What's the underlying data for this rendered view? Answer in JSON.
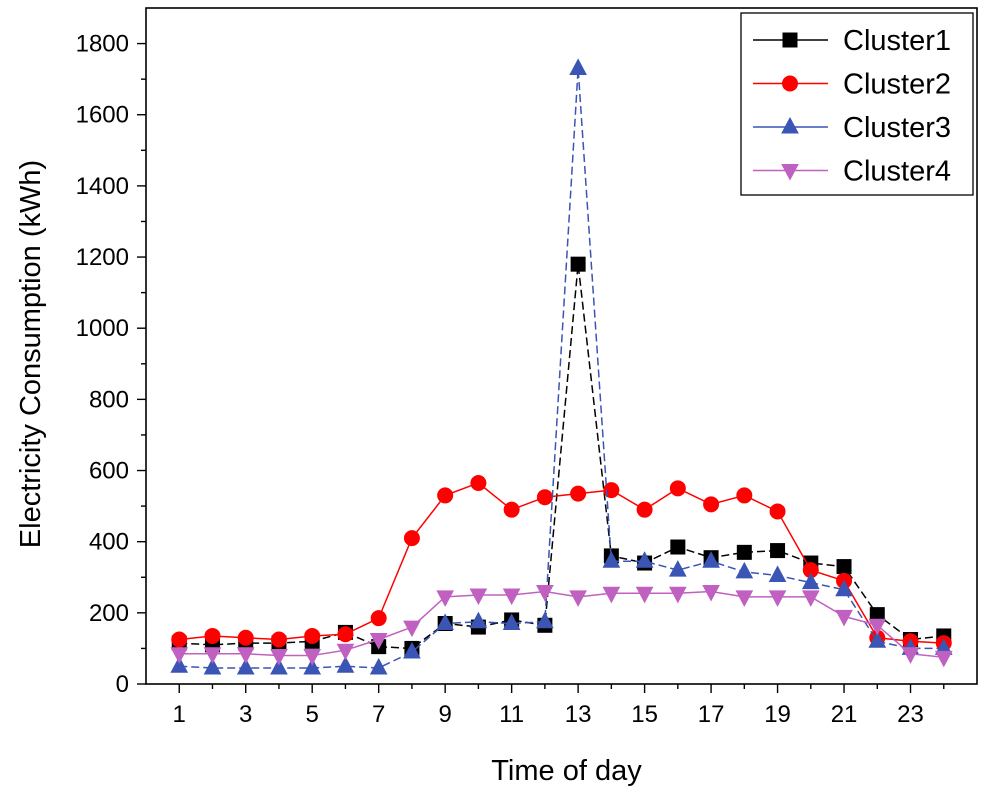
{
  "chart_data": {
    "type": "line",
    "xlabel": "Time of day",
    "ylabel": "Electricity Consumption (kWh)",
    "xlim": [
      0,
      25
    ],
    "ylim": [
      0,
      1900
    ],
    "x_ticks": [
      "1",
      "3",
      "5",
      "7",
      "9",
      "11",
      "13",
      "15",
      "17",
      "19",
      "21",
      "23"
    ],
    "y_ticks": [
      "0",
      "200",
      "400",
      "600",
      "800",
      "1000",
      "1200",
      "1400",
      "1600",
      "1800"
    ],
    "legend_position": "top-right",
    "x": [
      1,
      2,
      3,
      4,
      5,
      6,
      7,
      8,
      9,
      10,
      11,
      12,
      13,
      14,
      15,
      16,
      17,
      18,
      19,
      20,
      21,
      22,
      23,
      24
    ],
    "series": [
      {
        "name": "Cluster1",
        "color": "#000000",
        "marker": "square",
        "values": [
          115,
          110,
          115,
          115,
          120,
          145,
          105,
          100,
          170,
          160,
          180,
          165,
          1180,
          360,
          340,
          385,
          355,
          370,
          375,
          340,
          330,
          195,
          125,
          135
        ]
      },
      {
        "name": "Cluster2",
        "color": "#ff0000",
        "marker": "circle",
        "values": [
          125,
          135,
          130,
          125,
          135,
          140,
          185,
          410,
          530,
          565,
          490,
          525,
          535,
          545,
          490,
          550,
          505,
          530,
          485,
          320,
          290,
          130,
          120,
          115
        ]
      },
      {
        "name": "Cluster3",
        "color": "#3a55b4",
        "marker": "triangle-up",
        "values": [
          50,
          45,
          45,
          45,
          45,
          50,
          45,
          90,
          170,
          175,
          170,
          175,
          1730,
          345,
          345,
          320,
          345,
          315,
          305,
          285,
          265,
          120,
          100,
          100
        ]
      },
      {
        "name": "Cluster4",
        "color": "#c060c0",
        "marker": "triangle-down",
        "values": [
          85,
          85,
          85,
          80,
          80,
          95,
          125,
          160,
          245,
          250,
          250,
          260,
          245,
          255,
          255,
          255,
          260,
          245,
          245,
          245,
          190,
          165,
          85,
          75
        ]
      }
    ]
  }
}
